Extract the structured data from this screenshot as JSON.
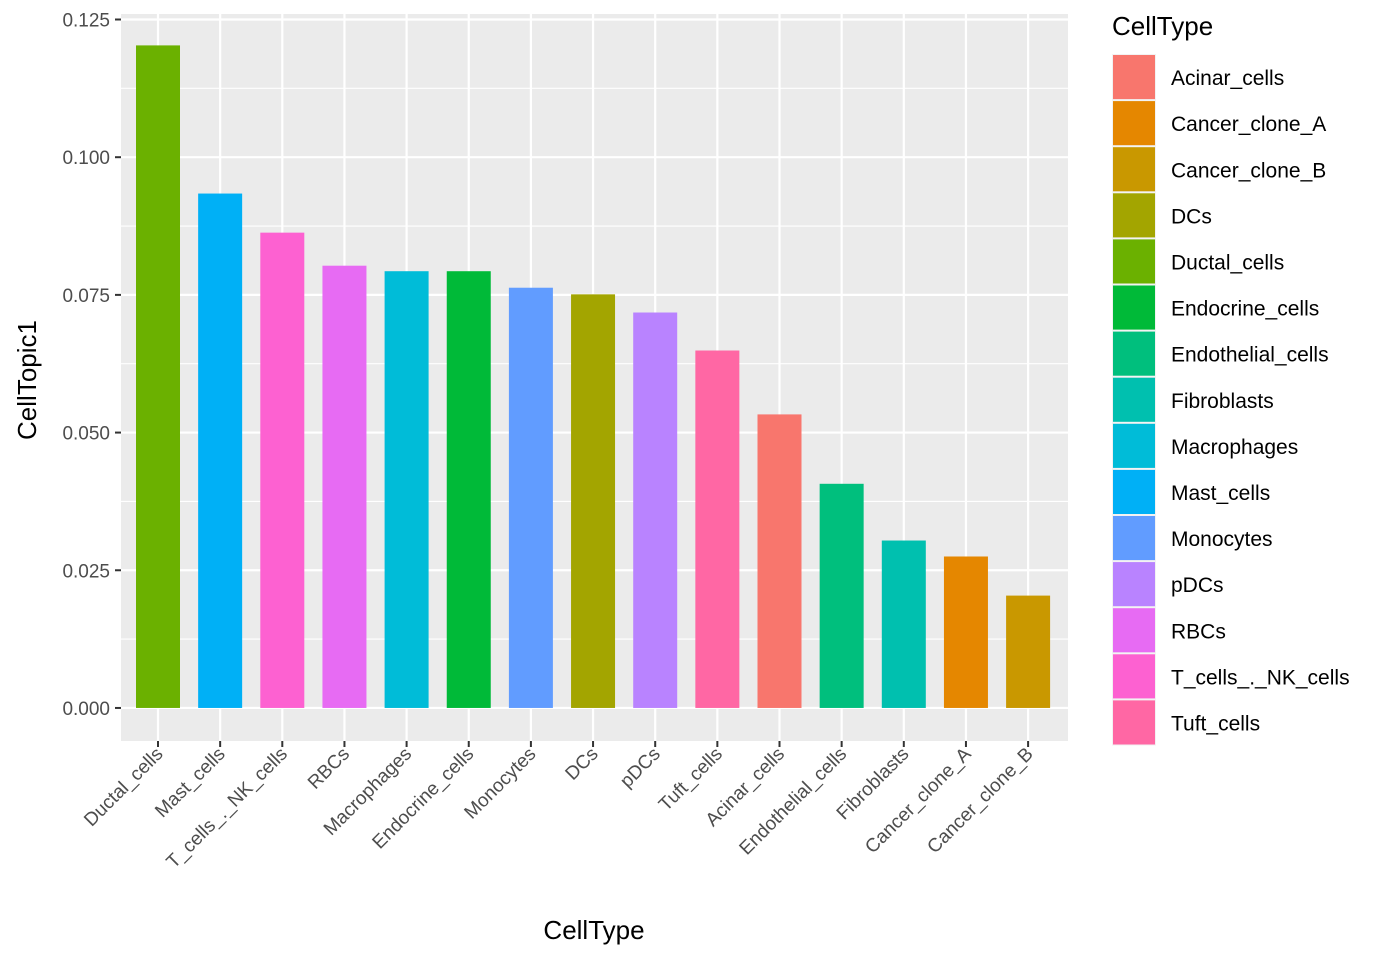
{
  "chart_data": {
    "type": "bar",
    "xlabel": "CellType",
    "ylabel": "CellTopic1",
    "ylim": [
      -0.006,
      0.126
    ],
    "yticks": [
      "0.000",
      "0.025",
      "0.050",
      "0.075",
      "0.100",
      "0.125"
    ],
    "ytick_values": [
      0,
      0.025,
      0.05,
      0.075,
      0.1,
      0.125
    ],
    "grid": true,
    "categories": [
      "Ductal_cells",
      "Mast_cells",
      "T_cells_._NK_cells",
      "RBCs",
      "Macrophages",
      "Endocrine_cells",
      "Monocytes",
      "DCs",
      "pDCs",
      "Tuft_cells",
      "Acinar_cells",
      "Endothelial_cells",
      "Fibroblasts",
      "Cancer_clone_A",
      "Cancer_clone_B"
    ],
    "values": [
      0.1203,
      0.0934,
      0.0863,
      0.0803,
      0.0793,
      0.0793,
      0.0763,
      0.0751,
      0.0718,
      0.0649,
      0.0533,
      0.0407,
      0.0304,
      0.0275,
      0.0204
    ],
    "legend": {
      "title": "CellType",
      "placement": "right",
      "entries": [
        {
          "label": "Acinar_cells",
          "color": "#F8766D"
        },
        {
          "label": "Cancer_clone_A",
          "color": "#E58700"
        },
        {
          "label": "Cancer_clone_B",
          "color": "#C99800"
        },
        {
          "label": "DCs",
          "color": "#A3A500"
        },
        {
          "label": "Ductal_cells",
          "color": "#6BB100"
        },
        {
          "label": "Endocrine_cells",
          "color": "#00BA38"
        },
        {
          "label": "Endothelial_cells",
          "color": "#00BF7D"
        },
        {
          "label": "Fibroblasts",
          "color": "#00C0AF"
        },
        {
          "label": "Macrophages",
          "color": "#00BCD8"
        },
        {
          "label": "Mast_cells",
          "color": "#00B0F6"
        },
        {
          "label": "Monocytes",
          "color": "#619CFF"
        },
        {
          "label": "pDCs",
          "color": "#B983FF"
        },
        {
          "label": "RBCs",
          "color": "#E76BF3"
        },
        {
          "label": "T_cells_._NK_cells",
          "color": "#FD61D1"
        },
        {
          "label": "Tuft_cells",
          "color": "#FF67A4"
        }
      ]
    }
  }
}
